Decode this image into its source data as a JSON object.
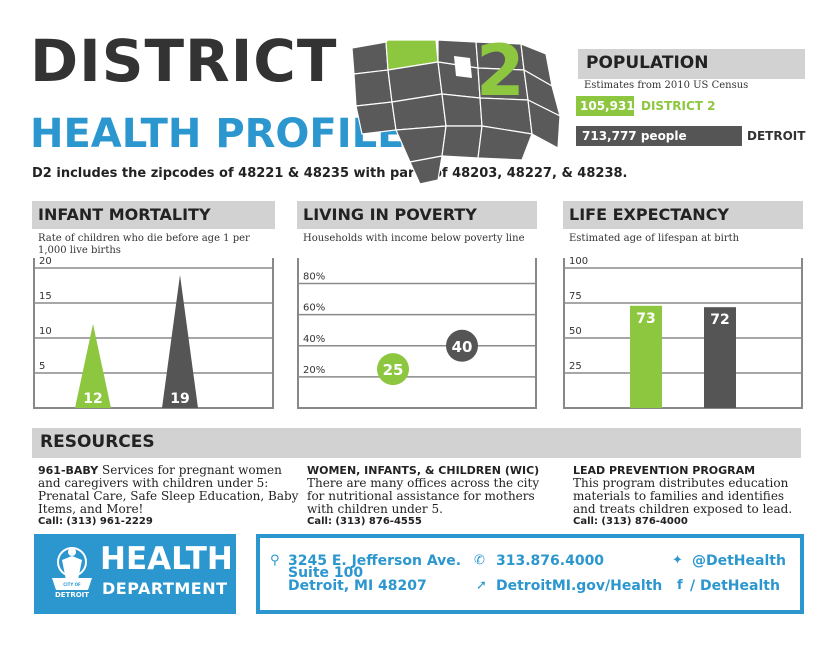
{
  "header": {
    "title_line1": "DISTRICT",
    "title_line2": "HEALTH PROFILE",
    "district_number": "2",
    "subtitle": "D2 includes the zipcodes of 48221 & 48235 with parts of 48203, 48227, & 48238."
  },
  "colors": {
    "green": "#8dc63f",
    "blue": "#2b97ce",
    "dark_gray": "#555555",
    "light_gray": "#d2d2d2"
  },
  "population": {
    "heading": "POPULATION",
    "note": "Estimates from 2010 US Census",
    "district_value": "105,931",
    "district_label": "DISTRICT 2",
    "detroit_value": "713,777 people",
    "detroit_label": "DETROIT"
  },
  "chart_data": [
    {
      "type": "bar",
      "title": "INFANT MORTALITY",
      "subtitle": "Rate of children who die before age 1 per 1,000 live births",
      "ylim": [
        0,
        20
      ],
      "yticks": [
        5,
        10,
        15,
        20
      ],
      "ytick_labels": [
        "5",
        "10",
        "15",
        "20"
      ],
      "series": [
        {
          "name": "",
          "values": [
            12
          ],
          "label": "12",
          "color": "#8dc63f"
        },
        {
          "name": "",
          "values": [
            19
          ],
          "label": "19",
          "color": "#555555"
        }
      ],
      "bar_shape": "triangle",
      "grid": true
    },
    {
      "type": "scatter",
      "title": "LIVING IN POVERTY",
      "subtitle": "Households with income below poverty line",
      "ylim": [
        0,
        90
      ],
      "yticks": [
        20,
        40,
        60,
        80
      ],
      "ytick_labels": [
        "20%",
        "40%",
        "60%",
        "80%"
      ],
      "series": [
        {
          "name": "",
          "values": [
            25
          ],
          "label": "25",
          "color": "#8dc63f"
        },
        {
          "name": "",
          "values": [
            40
          ],
          "label": "40",
          "color": "#555555"
        }
      ],
      "grid": true
    },
    {
      "type": "bar",
      "title": "LIFE EXPECTANCY",
      "subtitle": "Estimated age of lifespan at birth",
      "ylim": [
        0,
        100
      ],
      "yticks": [
        25,
        50,
        75,
        100
      ],
      "ytick_labels": [
        "25",
        "50",
        "75",
        "100"
      ],
      "series": [
        {
          "name": "",
          "values": [
            73
          ],
          "label": "73",
          "color": "#8dc63f"
        },
        {
          "name": "",
          "values": [
            72
          ],
          "label": "72",
          "color": "#555555"
        }
      ],
      "grid": true
    }
  ],
  "resources": {
    "heading": "RESOURCES",
    "items": [
      {
        "title": "961-BABY",
        "body": "Services for pregnant women and caregivers with children under 5: Prenatal Care, Safe Sleep Education, Baby Items, and More!",
        "call": "Call: (313) 961-2229"
      },
      {
        "title": "WOMEN, INFANTS, & CHILDREN (WIC)",
        "body": "There are many offices across the city for nutritional assistance for mothers with children under 5.",
        "call": "Call: (313) 876-4555"
      },
      {
        "title": "LEAD PREVENTION PROGRAM",
        "body": "This program distributes education materials to families and identifies and treats children exposed to lead.",
        "call": "Call: (313) 876-4000"
      }
    ]
  },
  "footer": {
    "logo_line1": "HEALTH",
    "logo_line2": "DEPARTMENT",
    "logo_seal_top": "CITY OF",
    "logo_seal": "DETROIT",
    "address_line1": "3245 E. Jefferson Ave.",
    "address_line2": "Suite 100",
    "address_line3": "Detroit, MI 48207",
    "phone": "313.876.4000",
    "website": "DetroitMI.gov/Health",
    "twitter": "@DetHealth",
    "facebook": "/ DetHealth"
  }
}
